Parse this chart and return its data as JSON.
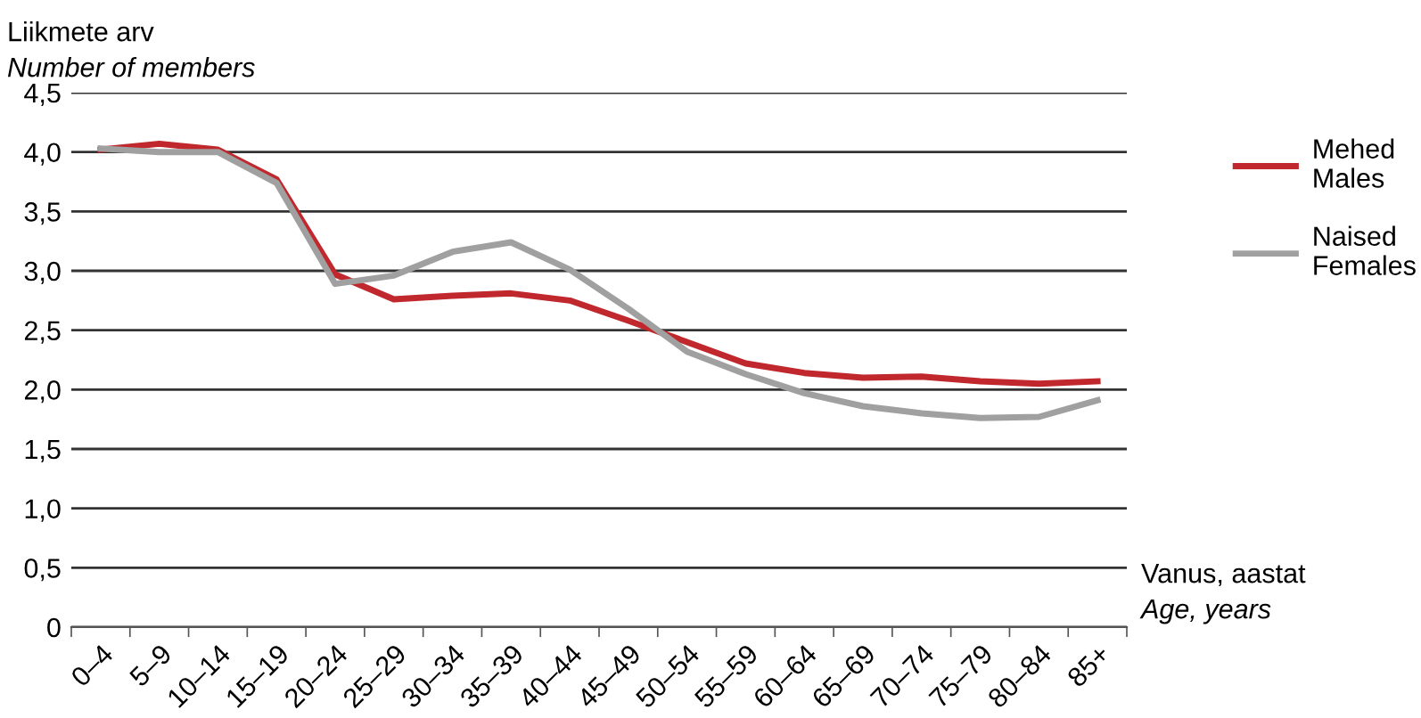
{
  "chart_data": {
    "type": "line",
    "ylabel": "Liikmete arv\nNumber of members",
    "xlabel": "Vanus, aastat\nAge, years",
    "categories": [
      "0–4",
      "5–9",
      "10–14",
      "15–19",
      "20–24",
      "25–29",
      "30–34",
      "35–39",
      "40–44",
      "45–49",
      "50–54",
      "55–59",
      "60–64",
      "65–69",
      "70–74",
      "75–79",
      "80–84",
      "85+"
    ],
    "series": [
      {
        "name": "Mehed\nMales",
        "color": "#c0282d",
        "values": [
          4.02,
          4.07,
          4.02,
          3.77,
          2.97,
          2.76,
          2.79,
          2.81,
          2.75,
          2.58,
          2.4,
          2.22,
          2.14,
          2.1,
          2.11,
          2.07,
          2.05,
          2.07
        ]
      },
      {
        "name": "Naised\nFemales",
        "color": "#a0a0a0",
        "values": [
          4.03,
          4.0,
          4.0,
          3.74,
          2.89,
          2.96,
          3.16,
          3.24,
          3.01,
          2.68,
          2.32,
          2.13,
          1.97,
          1.86,
          1.8,
          1.76,
          1.77,
          1.91
        ]
      }
    ],
    "ylim": [
      0,
      4.5
    ],
    "yticks": [
      0,
      {
        "value": 0.5,
        "label": "0,5"
      },
      {
        "value": 1,
        "label": "1,0"
      },
      {
        "value": 1.5,
        "label": "1,5"
      },
      {
        "value": 2,
        "label": "2,0"
      },
      {
        "value": 2.5,
        "label": "2,5"
      },
      {
        "value": 3,
        "label": "3,0"
      },
      {
        "value": 3.5,
        "label": "3,5"
      },
      {
        "value": 4,
        "label": "4,0"
      },
      {
        "value": 4.5,
        "label": "4,5"
      }
    ],
    "grid": "y",
    "legend": "right",
    "marker": "none",
    "line_style": "solid"
  }
}
